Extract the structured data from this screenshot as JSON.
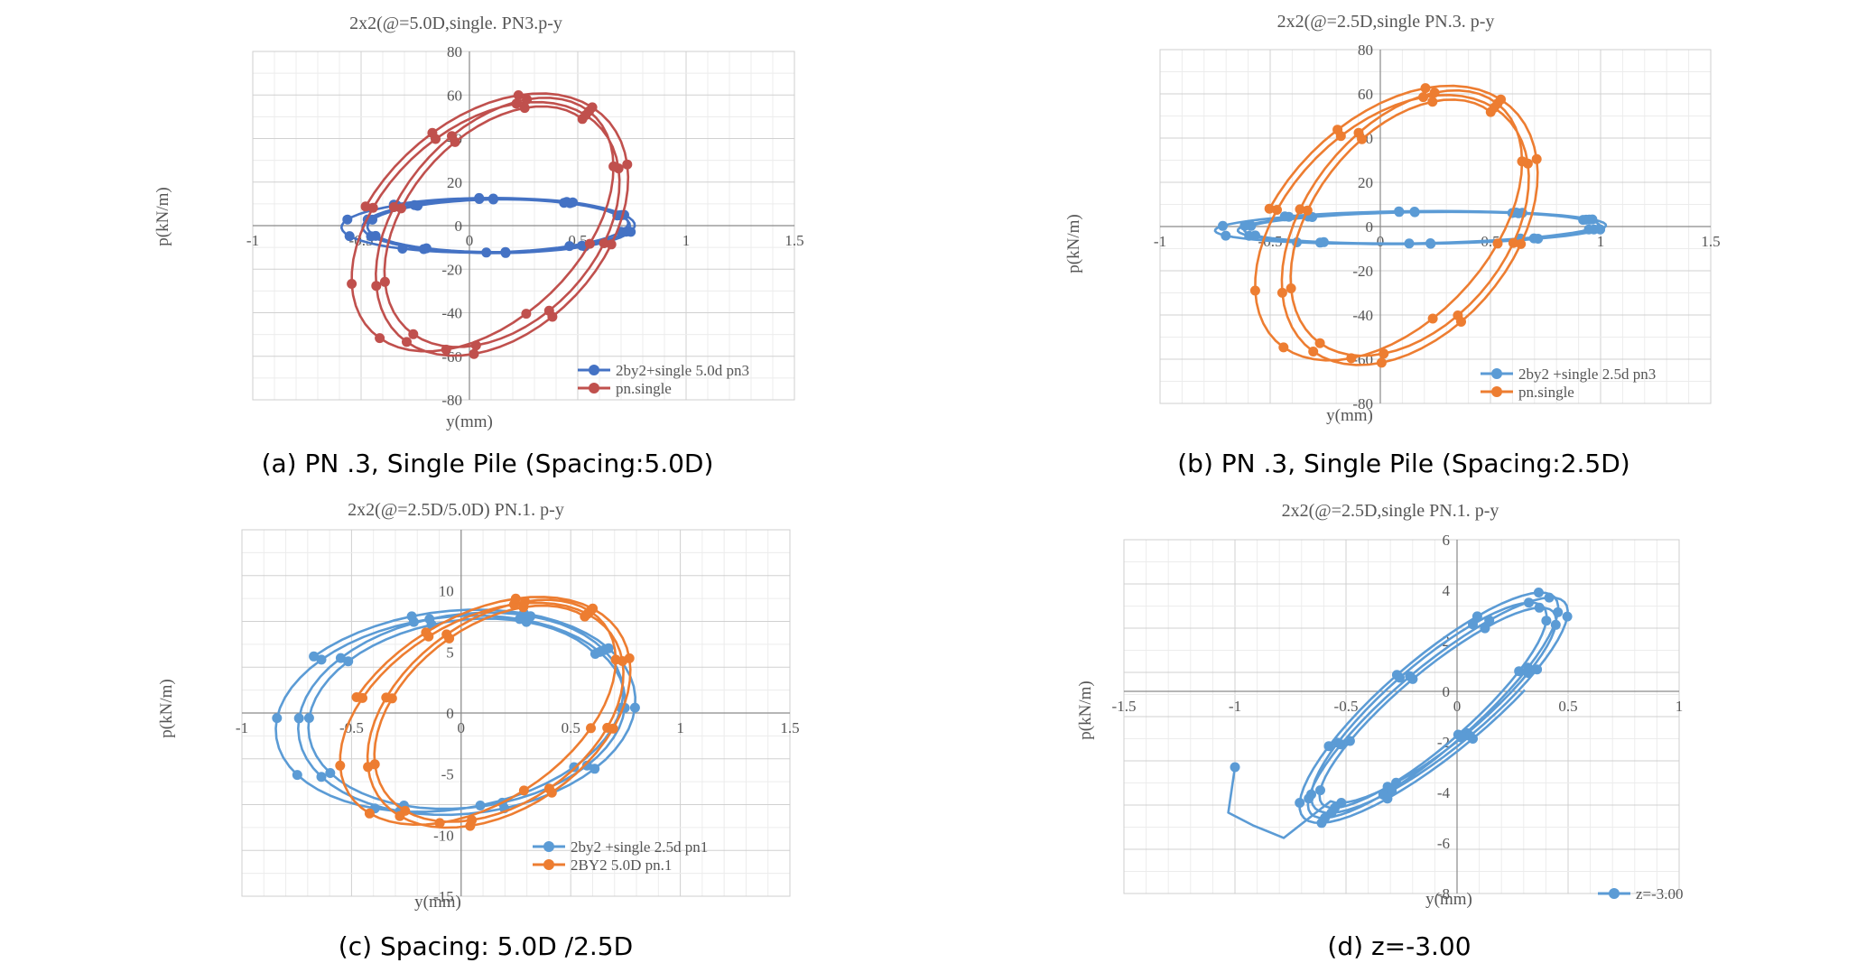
{
  "panels": [
    {
      "caption": "(a) PN .3, Single Pile (Spacing:5.0D)"
    },
    {
      "caption": "(b) PN .3, Single Pile (Spacing:2.5D)"
    },
    {
      "caption": "(c) Spacing: 5.0D /2.5D"
    },
    {
      "caption": "(d) z=-3.00"
    }
  ],
  "chart_data": [
    {
      "type": "scatter",
      "title": "2x2(@=5.0D,single. PN3.p-y",
      "xlabel": "y(mm)",
      "ylabel": "p(kN/m)",
      "xlim": [
        -1,
        1.5
      ],
      "ylim": [
        -80,
        80
      ],
      "xticks": [
        "-1",
        "-0.5",
        "0",
        "0.5",
        "1",
        "1.5"
      ],
      "yticks": [
        "-80",
        "-60",
        "-40",
        "-20",
        "0",
        "20",
        "40",
        "60",
        "80"
      ],
      "grid": true,
      "legend_position": "bottom-right",
      "series": [
        {
          "name": "2by2+single 5.0d pn3",
          "color": "#4472c4",
          "loops": [
            {
              "center": [
                0.1,
                0
              ],
              "rx": 0.62,
              "ry": 12,
              "tilt": 0.6,
              "turns": 3.3,
              "start": 20,
              "drift": [
                0.11,
                0.04
              ]
            }
          ]
        },
        {
          "name": "pn.single",
          "color": "#c0504d",
          "loops": [
            {
              "center": [
                0.1,
                0
              ],
              "rx": 0.55,
              "ry": 50,
              "tilt": 22,
              "turns": 3.3,
              "start": 40,
              "drift": [
                0.14,
                0.08
              ]
            }
          ]
        }
      ]
    },
    {
      "type": "scatter",
      "title": "2x2(@=2.5D,single PN.3. p-y",
      "xlabel": "y(mm)",
      "ylabel": "p(kN/m)",
      "xlim": [
        -1,
        1.5
      ],
      "ylim": [
        -80,
        80
      ],
      "xticks": [
        "-1",
        "-0.5",
        "0",
        "0.5",
        "1",
        "1.5"
      ],
      "yticks": [
        "-80",
        "-60",
        "-40",
        "-20",
        "0",
        "20",
        "40",
        "60",
        "80"
      ],
      "grid": true,
      "legend_position": "bottom-right",
      "series": [
        {
          "name": "2by2 +single 2.5d pn3",
          "color": "#5b9bd5",
          "loops": [
            {
              "center": [
                0.15,
                -0.5
              ],
              "rx": 0.82,
              "ry": 7,
              "tilt": 1.2,
              "turns": 3.3,
              "start": 20,
              "drift": [
                0.12,
                0.04
              ]
            }
          ]
        },
        {
          "name": "pn.single",
          "color": "#ed7d31",
          "loops": [
            {
              "center": [
                0.08,
                0
              ],
              "rx": 0.55,
              "ry": 52,
              "tilt": 24,
              "turns": 3.3,
              "start": 40,
              "drift": [
                0.15,
                0.08
              ]
            }
          ]
        }
      ]
    },
    {
      "type": "scatter",
      "title": "2x2(@=2.5D/5.0D) PN.1. p-y",
      "xlabel": "y(mm)",
      "ylabel": "p(kN/m)",
      "xlim": [
        -1,
        1.5
      ],
      "ylim": [
        -15,
        15
      ],
      "xticks": [
        "-1",
        "-0.5",
        "0",
        "0.5",
        "1",
        "1.5"
      ],
      "yticks": [
        "-15",
        "-10",
        "-5",
        "0",
        "5",
        "10"
      ],
      "grid": true,
      "legend_position": "bottom-right",
      "series": [
        {
          "name": "2by2 +single 2.5d pn1",
          "color": "#5b9bd5",
          "loops": [
            {
              "center": [
                -0.02,
                0
              ],
              "rx": 0.73,
              "ry": 7.6,
              "tilt": 1.2,
              "turns": 3.3,
              "start": 30,
              "drift": [
                0.13,
                0.07
              ]
            }
          ]
        },
        {
          "name": "2BY2 5.0D pn.1",
          "color": "#ed7d31",
          "loops": [
            {
              "center": [
                0.12,
                0
              ],
              "rx": 0.58,
              "ry": 8,
              "tilt": 3.6,
              "turns": 3.3,
              "start": 40,
              "drift": [
                0.15,
                0.06
              ]
            }
          ]
        }
      ]
    },
    {
      "type": "scatter",
      "title": "2x2(@=2.5D,single PN.1. p-y",
      "xlabel": "y(mm)",
      "ylabel": "p(kN/m)",
      "xlim": [
        -1.5,
        1
      ],
      "ylim": [
        -8,
        6
      ],
      "xticks": [
        "-1.5",
        "-1",
        "-0.5",
        "0",
        "0.5",
        "1"
      ],
      "yticks": [
        "-8",
        "-6",
        "-4",
        "-2",
        "0",
        "2",
        "4",
        "6"
      ],
      "grid": true,
      "legend_position": "bottom-right",
      "series": [
        {
          "name": "z=-3.00",
          "color": "#5b9bd5",
          "loops": [
            {
              "center": [
                -0.1,
                -0.6
              ],
              "rx": 0.5,
              "ry": 1.9,
              "tilt": 3.3,
              "turns": 4.3,
              "start": 200,
              "drift": [
                0.07,
                0.15
              ]
            }
          ],
          "tail": [
            [
              -1.0,
              -3.0
            ],
            [
              -1.03,
              -4.8
            ],
            [
              -0.92,
              -5.3
            ],
            [
              -0.78,
              -5.8
            ]
          ]
        }
      ]
    }
  ]
}
